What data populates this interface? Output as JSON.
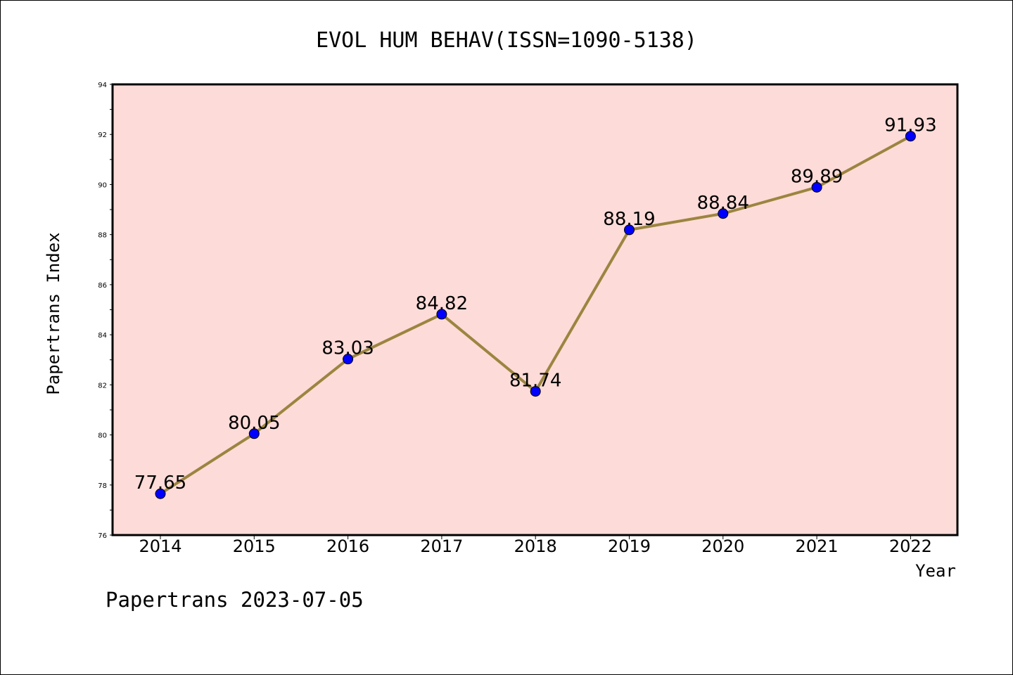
{
  "chart_data": {
    "type": "line",
    "title": "EVOL HUM BEHAV(ISSN=1090-5138)",
    "xlabel": "Year",
    "ylabel": "Papertrans Index",
    "categories": [
      "2014",
      "2015",
      "2016",
      "2017",
      "2018",
      "2019",
      "2020",
      "2021",
      "2022"
    ],
    "series": [
      {
        "values": [
          77.65,
          80.05,
          83.03,
          84.82,
          81.74,
          88.19,
          88.84,
          89.89,
          91.93
        ],
        "labels": [
          "77.65",
          "80.05",
          "83.03",
          "84.82",
          "81.74",
          "88.19",
          "88.84",
          "89.89",
          "91.93"
        ]
      }
    ],
    "ylim": [
      76,
      94
    ],
    "yticks": [
      76,
      78,
      80,
      82,
      84,
      86,
      88,
      90,
      92,
      94
    ],
    "grid": false,
    "colors": {
      "plot_background": "#fddbd8",
      "line": "#9b8540",
      "marker": "#0000ff"
    }
  },
  "footer": "Papertrans 2023-07-05"
}
